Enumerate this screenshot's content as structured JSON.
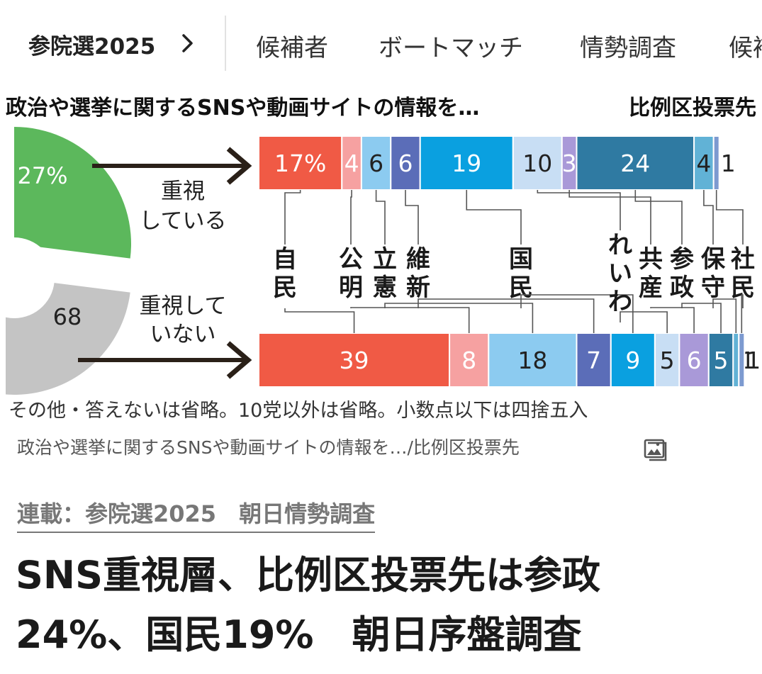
{
  "nav": {
    "series_label": "参院選2025",
    "tabs": [
      "候補者",
      "ボートマッチ",
      "情勢調査",
      "候補"
    ]
  },
  "chart_data": {
    "type": "bar",
    "title": "政治や選挙に関するSNSや動画サイトの情報を…",
    "subtitle": "比例区投票先",
    "donut": [
      {
        "label": "重視している",
        "value": 27,
        "value_text": "27%",
        "color": "#5cb85c"
      },
      {
        "label": "重視していない",
        "value": 68,
        "value_text": "68",
        "color": "#c4c4c4"
      }
    ],
    "categories": [
      "自民",
      "公明",
      "立憲",
      "維新",
      "国民",
      "れいわ",
      "共産",
      "参政",
      "保守",
      "社民"
    ],
    "colors": [
      "#f05a45",
      "#f6a1a1",
      "#8ccbf0",
      "#5b6db8",
      "#0aa0e0",
      "#c8def4",
      "#a999d8",
      "#2f7aa2",
      "#61b2d6",
      "#7d9ad0"
    ],
    "series": [
      {
        "name": "重視している",
        "values": [
          17,
          4,
          6,
          6,
          19,
          10,
          3,
          24,
          4,
          1
        ],
        "labels": [
          "17%",
          "4",
          "6",
          "6",
          "19",
          "10",
          "3",
          "24",
          "4",
          "1"
        ]
      },
      {
        "name": "重視していない",
        "values": [
          39,
          8,
          18,
          7,
          9,
          5,
          6,
          5,
          1,
          1
        ],
        "labels": [
          "39",
          "8",
          "18",
          "7",
          "9",
          "5",
          "6",
          "5",
          "1",
          "1"
        ]
      }
    ],
    "note": "その他・答えないは省略。10党以外は省略。小数点以下は四捨五入"
  },
  "caption": "政治や選挙に関するSNSや動画サイトの情報を…/比例区投票先",
  "article": {
    "series_link": "連載：参院選2025　朝日情勢調査",
    "headline_lines": [
      "SNS重視層、比例区投票先は参政",
      "24%、国民19%　朝日序盤調査"
    ]
  }
}
